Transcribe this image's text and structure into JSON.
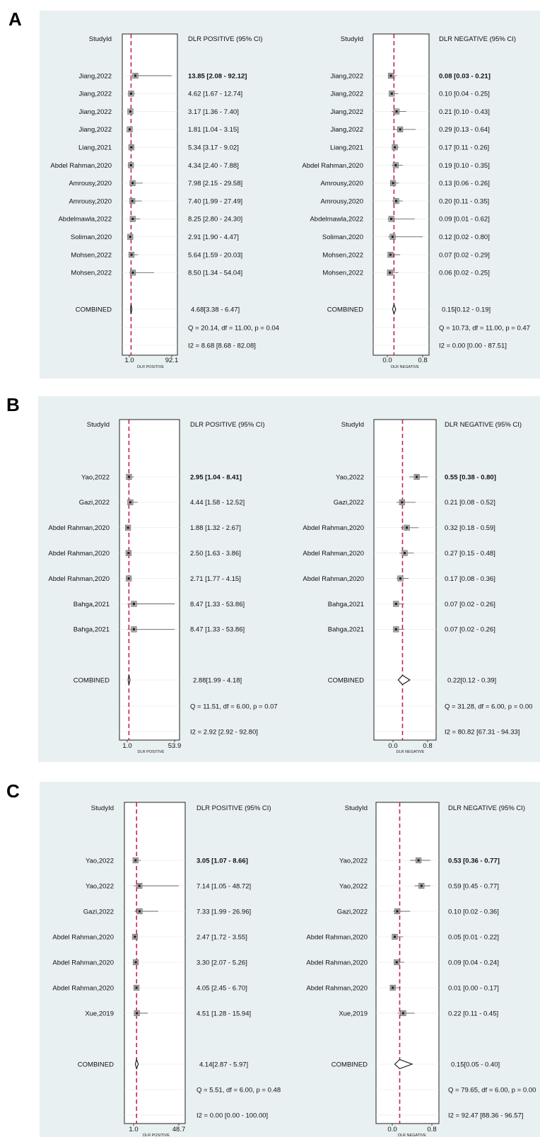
{
  "chart_data": [
    {
      "panel": "A",
      "type": "forest",
      "headers": {
        "study": "StudyId",
        "pos": "DLR POSITIVE (95% CI)",
        "neg": "DLR NEGATIVE (95% CI)"
      },
      "axes": {
        "pos_label": "DLR POSITIVE",
        "neg_label": "DLR NEGATIVE",
        "pos_ticks": [
          "1.0",
          "92.1"
        ],
        "neg_ticks": [
          "0.0",
          "0.8"
        ],
        "pos_xlim": [
          1.0,
          92.1
        ],
        "neg_xlim": [
          0.0,
          0.8
        ]
      },
      "studies": [
        {
          "id": "Jiang,2022",
          "pos": [
            13.85,
            2.08,
            92.12
          ],
          "pos_text": "13.85 [2.08 - 92.12]",
          "neg": [
            0.08,
            0.03,
            0.21
          ],
          "neg_text": "0.08 [0.03 - 0.21]"
        },
        {
          "id": "Jiang,2022",
          "pos": [
            4.62,
            1.67,
            12.74
          ],
          "pos_text": "4.62 [1.67 - 12.74]",
          "neg": [
            0.1,
            0.04,
            0.25
          ],
          "neg_text": "0.10 [0.04 - 0.25]"
        },
        {
          "id": "Jiang,2022",
          "pos": [
            3.17,
            1.36,
            7.4
          ],
          "pos_text": "3.17 [1.36 - 7.40]",
          "neg": [
            0.21,
            0.1,
            0.43
          ],
          "neg_text": "0.21 [0.10 - 0.43]"
        },
        {
          "id": "Jiang,2022",
          "pos": [
            1.81,
            1.04,
            3.15
          ],
          "pos_text": "1.81 [1.04 - 3.15]",
          "neg": [
            0.29,
            0.13,
            0.64
          ],
          "neg_text": "0.29 [0.13 - 0.64]"
        },
        {
          "id": "Liang,2021",
          "pos": [
            5.34,
            3.17,
            9.02
          ],
          "pos_text": "5.34 [3.17 - 9.02]",
          "neg": [
            0.17,
            0.11,
            0.26
          ],
          "neg_text": "0.17 [0.11 - 0.26]"
        },
        {
          "id": "Abdel Rahman,2020",
          "pos": [
            4.34,
            2.4,
            7.88
          ],
          "pos_text": "4.34 [2.40 - 7.88]",
          "neg": [
            0.19,
            0.1,
            0.35
          ],
          "neg_text": "0.19 [0.10 - 0.35]"
        },
        {
          "id": "Amrousy,2020",
          "pos": [
            7.98,
            2.15,
            29.58
          ],
          "pos_text": "7.98 [2.15 - 29.58]",
          "neg": [
            0.13,
            0.06,
            0.26
          ],
          "neg_text": "0.13 [0.06 - 0.26]"
        },
        {
          "id": "Amrousy,2020",
          "pos": [
            7.4,
            1.99,
            27.49
          ],
          "pos_text": "7.40 [1.99 - 27.49]",
          "neg": [
            0.2,
            0.11,
            0.35
          ],
          "neg_text": "0.20 [0.11 - 0.35]"
        },
        {
          "id": "Abdelmawla,2022",
          "pos": [
            8.25,
            2.8,
            24.3
          ],
          "pos_text": "8.25 [2.80 - 24.30]",
          "neg": [
            0.09,
            0.01,
            0.62
          ],
          "neg_text": "0.09 [0.01 - 0.62]"
        },
        {
          "id": "Soliman,2020",
          "pos": [
            2.91,
            1.9,
            4.47
          ],
          "pos_text": "2.91 [1.90 - 4.47]",
          "neg": [
            0.12,
            0.02,
            0.8
          ],
          "neg_text": "0.12 [0.02 - 0.80]"
        },
        {
          "id": "Mohsen,2022",
          "pos": [
            5.64,
            1.59,
            20.03
          ],
          "pos_text": "5.64 [1.59 - 20.03]",
          "neg": [
            0.07,
            0.02,
            0.29
          ],
          "neg_text": "0.07 [0.02 - 0.29]"
        },
        {
          "id": "Mohsen,2022",
          "pos": [
            8.5,
            1.34,
            54.04
          ],
          "pos_text": "8.50 [1.34 - 54.04]",
          "neg": [
            0.06,
            0.02,
            0.25
          ],
          "neg_text": "0.06 [0.02 - 0.25]"
        }
      ],
      "combined": {
        "label": "COMBINED",
        "pos": [
          4.68,
          3.38,
          6.47
        ],
        "pos_text": "4.68[3.38 - 6.47]",
        "neg": [
          0.15,
          0.12,
          0.19
        ],
        "neg_text": "0.15[0.12 - 0.19]"
      },
      "stats": {
        "pos_q": "Q = 20.14, df = 11.00, p =  0.04",
        "pos_i2": "I2 = 8.68 [8.68 - 82.08]",
        "neg_q": "Q = 10.73, df = 11.00, p =  0.47",
        "neg_i2": "I2 = 0.00 [0.00 - 87.51]"
      }
    },
    {
      "panel": "B",
      "type": "forest",
      "headers": {
        "study": "StudyId",
        "pos": "DLR POSITIVE (95% CI)",
        "neg": "DLR NEGATIVE (95% CI)"
      },
      "axes": {
        "pos_label": "DLR POSITIVE",
        "neg_label": "DLR NEGATIVE",
        "pos_ticks": [
          "1.0",
          "53.9"
        ],
        "neg_ticks": [
          "0.0",
          "0.8"
        ],
        "pos_xlim": [
          1.0,
          53.9
        ],
        "neg_xlim": [
          0.0,
          0.8
        ]
      },
      "studies": [
        {
          "id": "Yao,2022",
          "pos": [
            2.95,
            1.04,
            8.41
          ],
          "pos_text": "2.95 [1.04 - 8.41]",
          "neg": [
            0.55,
            0.38,
            0.8
          ],
          "neg_text": "0.55 [0.38 - 0.80]"
        },
        {
          "id": "Gazi,2022",
          "pos": [
            4.44,
            1.58,
            12.52
          ],
          "pos_text": "4.44 [1.58 - 12.52]",
          "neg": [
            0.21,
            0.08,
            0.52
          ],
          "neg_text": "0.21 [0.08 - 0.52]"
        },
        {
          "id": "Abdel Rahman,2020",
          "pos": [
            1.88,
            1.32,
            2.67
          ],
          "pos_text": "1.88 [1.32 - 2.67]",
          "neg": [
            0.32,
            0.18,
            0.59
          ],
          "neg_text": "0.32 [0.18 - 0.59]"
        },
        {
          "id": "Abdel Rahman,2020",
          "pos": [
            2.5,
            1.63,
            3.86
          ],
          "pos_text": "2.50 [1.63 - 3.86]",
          "neg": [
            0.27,
            0.15,
            0.48
          ],
          "neg_text": "0.27 [0.15 - 0.48]"
        },
        {
          "id": "Abdel Rahman,2020",
          "pos": [
            2.71,
            1.77,
            4.15
          ],
          "pos_text": "2.71 [1.77 - 4.15]",
          "neg": [
            0.17,
            0.08,
            0.36
          ],
          "neg_text": "0.17 [0.08 - 0.36]"
        },
        {
          "id": "Bahga,2021",
          "pos": [
            8.47,
            1.33,
            53.86
          ],
          "pos_text": "8.47 [1.33 - 53.86]",
          "neg": [
            0.07,
            0.02,
            0.26
          ],
          "neg_text": "0.07 [0.02 - 0.26]"
        },
        {
          "id": "Bahga,2021",
          "pos": [
            8.47,
            1.33,
            53.86
          ],
          "pos_text": "8.47 [1.33 - 53.86]",
          "neg": [
            0.07,
            0.02,
            0.26
          ],
          "neg_text": "0.07 [0.02 - 0.26]"
        }
      ],
      "combined": {
        "label": "COMBINED",
        "pos": [
          2.88,
          1.99,
          4.18
        ],
        "pos_text": "2.88[1.99 - 4.18]",
        "neg": [
          0.22,
          0.12,
          0.39
        ],
        "neg_text": "0.22[0.12 - 0.39]"
      },
      "stats": {
        "pos_q": "Q = 11.51, df = 6.00, p =  0.07",
        "pos_i2": "I2 = 2.92 [2.92 - 92.80]",
        "neg_q": "Q = 31.28, df = 6.00, p =  0.00",
        "neg_i2": "I2 = 80.82 [67.31 - 94.33]"
      }
    },
    {
      "panel": "C",
      "type": "forest",
      "headers": {
        "study": "StudyId",
        "pos": "DLR POSITIVE (95% CI)",
        "neg": "DLR NEGATIVE (95% CI)"
      },
      "axes": {
        "pos_label": "DLR POSITIVE",
        "neg_label": "DLR NEGATIVE",
        "pos_ticks": [
          "1.0",
          "48.7"
        ],
        "neg_ticks": [
          "0.0",
          "0.8"
        ],
        "pos_xlim": [
          1.0,
          48.7
        ],
        "neg_xlim": [
          0.0,
          0.8
        ]
      },
      "studies": [
        {
          "id": "Yao,2022",
          "pos": [
            3.05,
            1.07,
            8.66
          ],
          "pos_text": "3.05 [1.07 - 8.66]",
          "neg": [
            0.53,
            0.36,
            0.77
          ],
          "neg_text": "0.53 [0.36 - 0.77]"
        },
        {
          "id": "Yao,2022",
          "pos": [
            7.14,
            1.05,
            48.72
          ],
          "pos_text": "7.14 [1.05 - 48.72]",
          "neg": [
            0.59,
            0.45,
            0.77
          ],
          "neg_text": "0.59 [0.45 - 0.77]"
        },
        {
          "id": "Gazi,2022",
          "pos": [
            7.33,
            1.99,
            26.96
          ],
          "pos_text": "7.33 [1.99 - 26.96]",
          "neg": [
            0.1,
            0.02,
            0.36
          ],
          "neg_text": "0.10 [0.02 - 0.36]"
        },
        {
          "id": "Abdel Rahman,2020",
          "pos": [
            2.47,
            1.72,
            3.55
          ],
          "pos_text": "2.47 [1.72 - 3.55]",
          "neg": [
            0.05,
            0.01,
            0.22
          ],
          "neg_text": "0.05 [0.01 - 0.22]"
        },
        {
          "id": "Abdel Rahman,2020",
          "pos": [
            3.3,
            2.07,
            5.26
          ],
          "pos_text": "3.30 [2.07 - 5.26]",
          "neg": [
            0.09,
            0.04,
            0.24
          ],
          "neg_text": "0.09 [0.04 - 0.24]"
        },
        {
          "id": "Abdel Rahman,2020",
          "pos": [
            4.05,
            2.45,
            6.7
          ],
          "pos_text": "4.05 [2.45 - 6.70]",
          "neg": [
            0.01,
            0.0,
            0.17
          ],
          "neg_text": "0.01 [0.00 - 0.17]"
        },
        {
          "id": "Xue,2019",
          "pos": [
            4.51,
            1.28,
            15.94
          ],
          "pos_text": "4.51 [1.28 - 15.94]",
          "neg": [
            0.22,
            0.11,
            0.45
          ],
          "neg_text": "0.22 [0.11 - 0.45]"
        }
      ],
      "combined": {
        "label": "COMBINED",
        "pos": [
          4.14,
          2.87,
          5.97
        ],
        "pos_text": "4.14[2.87 - 5.97]",
        "neg": [
          0.15,
          0.05,
          0.4
        ],
        "neg_text": "0.15[0.05 - 0.40]"
      },
      "stats": {
        "pos_q": "Q =  5.51, df = 6.00, p =  0.48",
        "pos_i2": "I2 = 0.00 [0.00 - 100.00]",
        "neg_q": "Q = 79.65, df = 6.00, p =  0.00",
        "neg_i2": "I2 = 92.47 [88.36 - 96.57]"
      }
    }
  ],
  "colors": {
    "panel_bg": "#e9f0f1",
    "ref_line": "#c8234a",
    "box_fill": "#a8a8a8",
    "box_stroke": "#555555",
    "ci_line": "#666666"
  }
}
